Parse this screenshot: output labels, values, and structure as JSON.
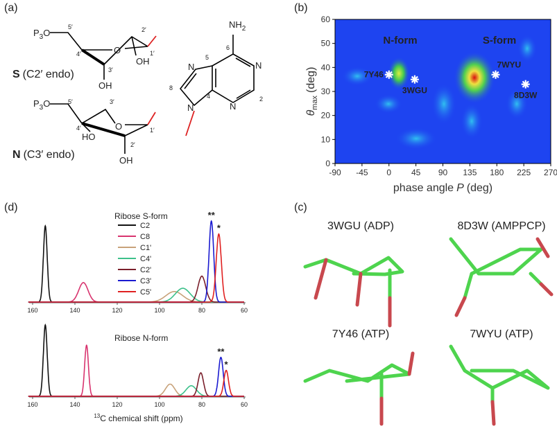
{
  "panel_labels": [
    "(a)",
    "(b)",
    "(c)",
    "(d)"
  ],
  "structures": {
    "forms": [
      {
        "name": "S",
        "description": "(C2′ endo)"
      },
      {
        "name": "N",
        "description": "(C3′ endo)"
      }
    ],
    "atom_labels": [
      {
        "text": "P",
        "sub": "3",
        "after": "O"
      },
      {
        "text": "5′"
      },
      {
        "text": "4′"
      },
      {
        "text": "O"
      },
      {
        "text": "2′"
      },
      {
        "text": "1′"
      },
      {
        "text": "OH"
      },
      {
        "text": "3′"
      },
      {
        "text": "OH"
      },
      {
        "text": "P",
        "sub": "3",
        "after": "O"
      },
      {
        "text": "5′"
      },
      {
        "text": "3′"
      },
      {
        "text": "4′"
      },
      {
        "text": "O"
      },
      {
        "text": "1′"
      },
      {
        "text": "HO"
      },
      {
        "text": "2′"
      },
      {
        "text": "OH"
      },
      {
        "text": "NH",
        "sub": "2"
      },
      {
        "text": "6"
      },
      {
        "text": "N"
      },
      {
        "text": "2"
      },
      {
        "text": "N"
      },
      {
        "text": "4"
      },
      {
        "text": "5"
      },
      {
        "text": "N"
      },
      {
        "text": "8"
      },
      {
        "text": "N"
      }
    ]
  },
  "chart_data": [
    {
      "type": "scatter",
      "xlabel": {
        "text": "phase angle",
        "symbol": "P",
        "unit": "(deg)"
      },
      "ylabel": {
        "symbol": "θ",
        "subscript": "max",
        "unit": "(deg)"
      },
      "xlim": [
        -90,
        270
      ],
      "ylim": [
        0,
        60
      ],
      "xticks": [
        -90,
        -45,
        0,
        45,
        90,
        135,
        180,
        225,
        270
      ],
      "yticks": [
        0,
        10,
        20,
        30,
        40,
        50,
        60
      ],
      "points": {
        "labels": [
          "7Y46",
          "3WGU",
          "7WYU",
          "8D3W"
        ],
        "x": [
          0,
          43,
          178,
          228
        ],
        "y": [
          37,
          35,
          37,
          33
        ],
        "color": "#ffffff"
      },
      "annotations": [
        "N-form",
        "S-form"
      ]
    },
    {
      "type": "spectrum",
      "title": "Ribose S-form",
      "xlim": [
        160,
        60
      ],
      "xticks": [
        160,
        140,
        120,
        100,
        80,
        60
      ],
      "series": [
        {
          "name": "C2",
          "color": "#111111",
          "peak": 154,
          "height": 94,
          "width": 0.9
        },
        {
          "name": "C8",
          "color": "#d8336e",
          "peak": 136,
          "height": 24,
          "width": 2.2
        },
        {
          "name": "C1'",
          "color": "#c8a27a",
          "peak": 93,
          "height": 13,
          "width": 4
        },
        {
          "name": "C4'",
          "color": "#3cc08a",
          "peak": 89,
          "height": 17,
          "width": 3.5
        },
        {
          "name": "C2'",
          "color": "#7a1f2b",
          "peak": 80,
          "height": 32,
          "width": 1.8
        },
        {
          "name": "C3'",
          "color": "#1a1ad0",
          "peak": 75.5,
          "height": 100,
          "width": 1.1,
          "annotation": "**"
        },
        {
          "name": "C5'",
          "color": "#e02020",
          "peak": 72,
          "height": 84,
          "width": 1.2,
          "annotation": "*"
        }
      ]
    },
    {
      "type": "spectrum",
      "title": "Ribose N-form",
      "xlim": [
        160,
        60
      ],
      "xticks": [
        160,
        140,
        120,
        100,
        80,
        60
      ],
      "xlabel": {
        "isotope": "13",
        "text": "C chemical shift (ppm)"
      },
      "series": [
        {
          "color": "#111111",
          "peak": 154,
          "height": 88,
          "width": 0.9
        },
        {
          "color": "#d8336e",
          "peak": 134.5,
          "height": 63,
          "width": 0.9
        },
        {
          "color": "#c8a27a",
          "peak": 95,
          "height": 15,
          "width": 2.2
        },
        {
          "color": "#3cc08a",
          "peak": 85,
          "height": 13,
          "width": 2.5
        },
        {
          "color": "#7a1f2b",
          "peak": 80.5,
          "height": 29,
          "width": 1.3
        },
        {
          "color": "#1a1ad0",
          "peak": 71,
          "height": 48,
          "width": 1.1,
          "annotation": "**"
        },
        {
          "color": "#e02020",
          "peak": 68.5,
          "height": 32,
          "width": 1.1,
          "annotation": "*"
        }
      ]
    }
  ],
  "models": [
    "3WGU (ADP)",
    "8D3W (AMPPCP)",
    "7Y46 (ATP)",
    "7WYU (ATP)"
  ]
}
